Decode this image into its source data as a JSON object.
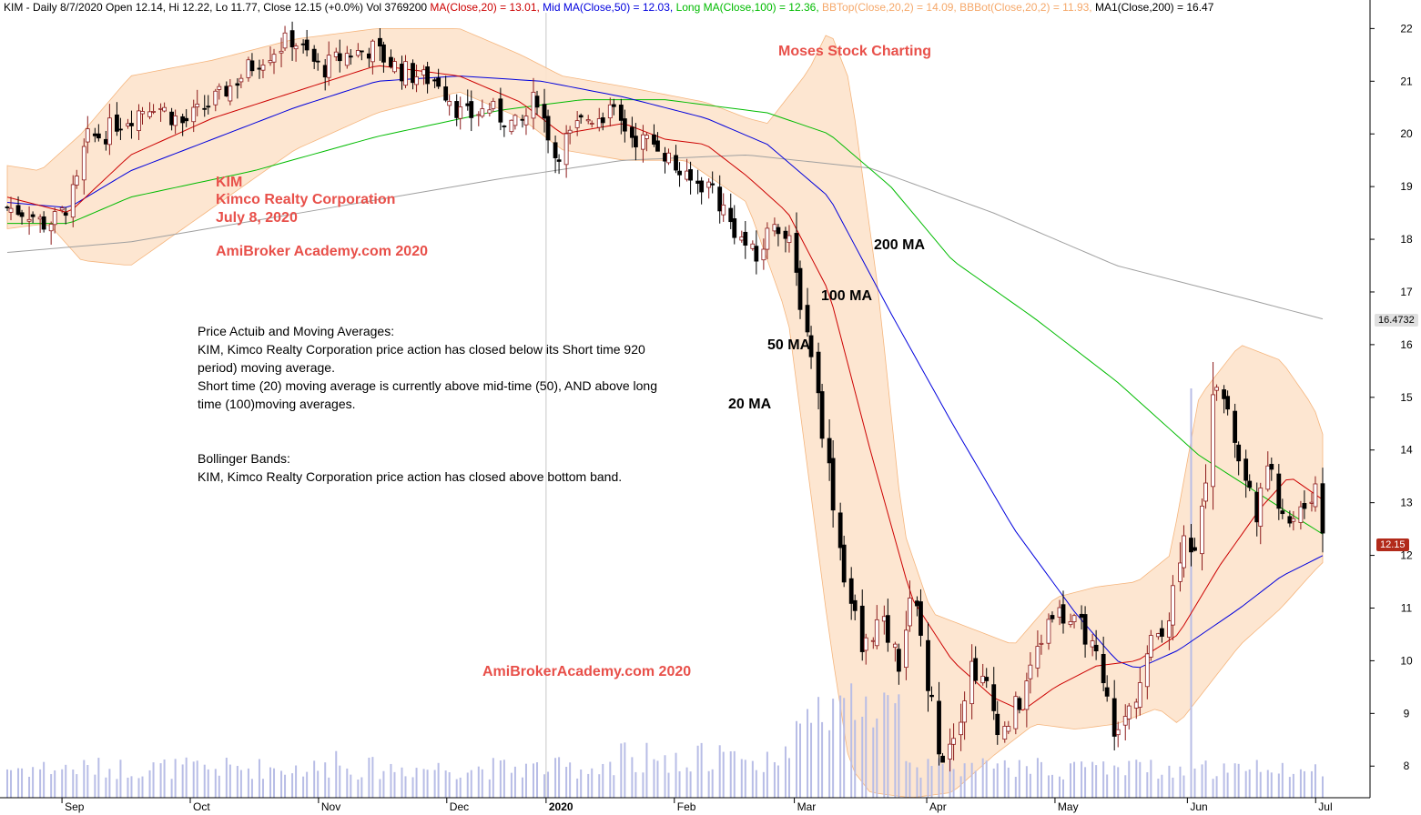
{
  "header": {
    "prefix": "KIM - Daily 8/7/2020 Open 12.14, Hi 12.22, Lo 11.77, Close 12.15 (+0.0%) Vol 3769200",
    "ma20": " MA(Close,20) = 13.01,",
    "ma50": " Mid MA(Close,50) = 12.03,",
    "ma100": " Long MA(Close,100) = 12.36,",
    "bbtop": " BBTop(Close,20,2) = 14.09,",
    "bbbot": " BBBot(Close,20,2) = 11.93,",
    "ma200": " MA1(Close,200) = 16.47"
  },
  "annotations": {
    "brand": "Moses Stock Charting",
    "ticker": "KIM",
    "company": "Kimco Realty Corporation",
    "date": "July 8, 2020",
    "site1": "AmiBroker Academy.com  2020",
    "site2": "AmiBrokerAcademy.com  2020",
    "ma200_label": "200 MA",
    "ma100_label": "100 MA",
    "ma50_label": "50 MA",
    "ma20_label": "20 MA",
    "note1_l1": "Price Actuib and Moving Averages:",
    "note1_l2": "KIM, Kimco Realty Corporation price action has closed below its Short time 920",
    "note1_l3": "period) moving average.",
    "note1_l4": "Short time (20) moving average is currently above mid-time (50), AND above long",
    "note1_l5": "time (100)moving averages.",
    "note2_l1": "Bollinger Bands:",
    "note2_l2": "KIM, Kimco Realty Corporation price action has closed above bottom band."
  },
  "badges": {
    "ma200": "16.4732",
    "close": "12.15"
  },
  "colors": {
    "ma20": "#cc0000",
    "ma50": "#0000dd",
    "ma100": "#00bb00",
    "ma200": "#a0a0a0",
    "bb_fill": "#fde3cc",
    "bb_edge": "#f5b57d",
    "up": "#8b1a1a",
    "down": "#000000",
    "volume": "#b8bde6",
    "header_ma20": "#cc0000",
    "header_ma50": "#0000dd",
    "header_ma100": "#00bb00",
    "header_bb": "#f5a86a",
    "header_ma200": "#000000",
    "badge_ma200_bg": "#e0e0e0",
    "badge_close_bg": "#b22a1a"
  },
  "chart_data": {
    "type": "candlestick",
    "ticker": "KIM",
    "ylim": [
      7.4,
      22.3
    ],
    "y_ticks": [
      8,
      9,
      10,
      11,
      12,
      13,
      14,
      15,
      16,
      17,
      18,
      19,
      20,
      21,
      22
    ],
    "x_ticks": [
      "Sep",
      "Oct",
      "Nov",
      "Dec",
      "2020",
      "Feb",
      "Mar",
      "Apr",
      "May",
      "Jun",
      "Jul"
    ],
    "x_tick_days": [
      13,
      44,
      75,
      106,
      130,
      161,
      190,
      222,
      253,
      285,
      316
    ],
    "total_days": 322,
    "ma200": [
      [
        0,
        17.75
      ],
      [
        30,
        17.95
      ],
      [
        60,
        18.35
      ],
      [
        90,
        18.75
      ],
      [
        120,
        19.15
      ],
      [
        150,
        19.5
      ],
      [
        180,
        19.6
      ],
      [
        210,
        19.35
      ],
      [
        240,
        18.5
      ],
      [
        270,
        17.5
      ],
      [
        300,
        16.9
      ],
      [
        321,
        16.47
      ]
    ],
    "ma100": [
      [
        0,
        18.3
      ],
      [
        15,
        18.3
      ],
      [
        30,
        18.8
      ],
      [
        60,
        19.3
      ],
      [
        90,
        19.95
      ],
      [
        120,
        20.45
      ],
      [
        140,
        20.65
      ],
      [
        160,
        20.65
      ],
      [
        185,
        20.4
      ],
      [
        200,
        20.0
      ],
      [
        215,
        19.0
      ],
      [
        230,
        17.6
      ],
      [
        250,
        16.5
      ],
      [
        270,
        15.3
      ],
      [
        290,
        13.9
      ],
      [
        310,
        12.9
      ],
      [
        321,
        12.36
      ]
    ],
    "ma50": [
      [
        0,
        18.7
      ],
      [
        15,
        18.6
      ],
      [
        30,
        19.3
      ],
      [
        50,
        19.9
      ],
      [
        70,
        20.5
      ],
      [
        90,
        21.0
      ],
      [
        110,
        21.1
      ],
      [
        130,
        21.0
      ],
      [
        150,
        20.7
      ],
      [
        170,
        20.3
      ],
      [
        185,
        19.8
      ],
      [
        200,
        18.8
      ],
      [
        215,
        16.6
      ],
      [
        230,
        14.5
      ],
      [
        245,
        12.5
      ],
      [
        260,
        10.9
      ],
      [
        270,
        10.0
      ],
      [
        275,
        9.85
      ],
      [
        285,
        10.2
      ],
      [
        300,
        11.0
      ],
      [
        310,
        11.6
      ],
      [
        321,
        12.03
      ]
    ],
    "ma20": [
      [
        0,
        18.8
      ],
      [
        15,
        18.5
      ],
      [
        30,
        19.6
      ],
      [
        50,
        20.3
      ],
      [
        70,
        20.8
      ],
      [
        90,
        21.3
      ],
      [
        110,
        21.1
      ],
      [
        125,
        20.6
      ],
      [
        135,
        20.0
      ],
      [
        150,
        20.2
      ],
      [
        160,
        19.9
      ],
      [
        170,
        19.8
      ],
      [
        180,
        19.2
      ],
      [
        190,
        18.5
      ],
      [
        200,
        17.0
      ],
      [
        210,
        14.0
      ],
      [
        220,
        11.2
      ],
      [
        230,
        10.0
      ],
      [
        240,
        9.3
      ],
      [
        247,
        9.05
      ],
      [
        255,
        9.5
      ],
      [
        265,
        9.9
      ],
      [
        275,
        10.0
      ],
      [
        285,
        10.5
      ],
      [
        295,
        11.8
      ],
      [
        305,
        12.9
      ],
      [
        312,
        13.5
      ],
      [
        321,
        13.01
      ]
    ],
    "bb_upper": [
      [
        0,
        19.4
      ],
      [
        8,
        19.3
      ],
      [
        18,
        20.0
      ],
      [
        30,
        21.1
      ],
      [
        50,
        21.4
      ],
      [
        70,
        21.8
      ],
      [
        90,
        22.0
      ],
      [
        110,
        22.0
      ],
      [
        125,
        21.5
      ],
      [
        135,
        21.1
      ],
      [
        150,
        20.9
      ],
      [
        170,
        20.6
      ],
      [
        180,
        20.3
      ],
      [
        185,
        20.2
      ],
      [
        195,
        21.2
      ],
      [
        200,
        22.0
      ],
      [
        205,
        21.0
      ],
      [
        212,
        17.0
      ],
      [
        218,
        12.5
      ],
      [
        225,
        10.9
      ],
      [
        235,
        10.6
      ],
      [
        245,
        10.3
      ],
      [
        255,
        11.2
      ],
      [
        265,
        11.4
      ],
      [
        275,
        11.5
      ],
      [
        283,
        12.0
      ],
      [
        290,
        15.0
      ],
      [
        300,
        16.0
      ],
      [
        310,
        15.7
      ],
      [
        318,
        14.8
      ],
      [
        321,
        14.09
      ]
    ],
    "bb_lower": [
      [
        0,
        18.2
      ],
      [
        10,
        18.3
      ],
      [
        18,
        17.6
      ],
      [
        30,
        17.5
      ],
      [
        50,
        18.6
      ],
      [
        70,
        19.7
      ],
      [
        90,
        20.4
      ],
      [
        110,
        20.8
      ],
      [
        125,
        20.3
      ],
      [
        135,
        19.7
      ],
      [
        150,
        19.5
      ],
      [
        165,
        19.5
      ],
      [
        180,
        18.7
      ],
      [
        190,
        16.5
      ],
      [
        200,
        10.5
      ],
      [
        205,
        8.0
      ],
      [
        210,
        7.5
      ],
      [
        220,
        7.4
      ],
      [
        230,
        7.5
      ],
      [
        240,
        8.2
      ],
      [
        250,
        8.8
      ],
      [
        260,
        8.7
      ],
      [
        270,
        8.8
      ],
      [
        280,
        9.1
      ],
      [
        285,
        8.8
      ],
      [
        290,
        9.3
      ],
      [
        300,
        10.3
      ],
      [
        310,
        11.0
      ],
      [
        318,
        11.7
      ],
      [
        321,
        11.93
      ]
    ],
    "anchors": [
      [
        0,
        18.6
      ],
      [
        6,
        18.5
      ],
      [
        10,
        18.3
      ],
      [
        14,
        18.4
      ],
      [
        18,
        18.8
      ],
      [
        22,
        19.9
      ],
      [
        27,
        20.0
      ],
      [
        30,
        20.2
      ],
      [
        40,
        20.6
      ],
      [
        48,
        20.2
      ],
      [
        58,
        20.7
      ],
      [
        70,
        21.5
      ],
      [
        78,
        21.8
      ],
      [
        86,
        21.2
      ],
      [
        92,
        21.5
      ],
      [
        100,
        21.6
      ],
      [
        108,
        21.2
      ],
      [
        118,
        21.0
      ],
      [
        125,
        20.3
      ],
      [
        132,
        20.5
      ],
      [
        140,
        20.1
      ],
      [
        145,
        20.7
      ],
      [
        150,
        19.6
      ],
      [
        158,
        20.3
      ],
      [
        165,
        20.4
      ],
      [
        172,
        19.9
      ],
      [
        178,
        19.8
      ],
      [
        186,
        19.1
      ],
      [
        193,
        19.0
      ],
      [
        198,
        18.3
      ],
      [
        205,
        17.6
      ],
      [
        210,
        18.4
      ],
      [
        214,
        17.9
      ],
      [
        220,
        15.9
      ],
      [
        225,
        13.6
      ],
      [
        229,
        11.7
      ],
      [
        234,
        10.2
      ],
      [
        239,
        10.8
      ],
      [
        244,
        10.0
      ],
      [
        248,
        11.4
      ],
      [
        252,
        9.5
      ],
      [
        256,
        8.2
      ],
      [
        260,
        8.9
      ],
      [
        264,
        9.9
      ],
      [
        268,
        9.5
      ],
      [
        272,
        8.6
      ],
      [
        277,
        9.2
      ],
      [
        282,
        10.2
      ],
      [
        286,
        11.0
      ],
      [
        290,
        10.8
      ],
      [
        296,
        10.5
      ],
      [
        300,
        9.4
      ],
      [
        304,
        8.6
      ],
      [
        309,
        9.4
      ],
      [
        313,
        10.3
      ],
      [
        318,
        10.9
      ],
      [
        322,
        12.6
      ],
      [
        326,
        11.8
      ],
      [
        330,
        15.5
      ],
      [
        334,
        14.8
      ],
      [
        338,
        13.5
      ],
      [
        342,
        12.9
      ],
      [
        346,
        13.7
      ],
      [
        350,
        12.6
      ],
      [
        354,
        12.8
      ],
      [
        358,
        13.3
      ],
      [
        361,
        12.15
      ]
    ],
    "volume_scale_max": 80
  }
}
